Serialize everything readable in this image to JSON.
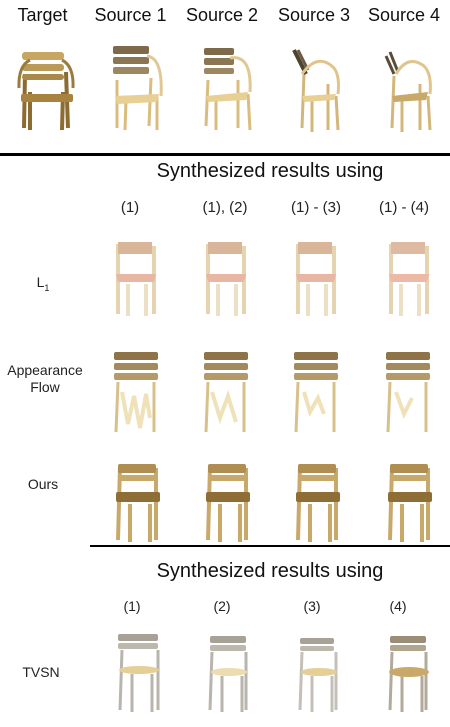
{
  "top": {
    "headers": [
      "Target",
      "Source 1",
      "Source 2",
      "Source 3",
      "Source 4"
    ]
  },
  "section1": {
    "title": "Synthesized results using",
    "columns": [
      "(1)",
      "(1), (2)",
      "(1) - (3)",
      "(1) - (4)"
    ],
    "rows": [
      {
        "label": "L",
        "label_sub": "1"
      },
      {
        "label_line1": "Appearance",
        "label_line2": "Flow"
      },
      {
        "label": "Ours"
      }
    ]
  },
  "section2": {
    "title": "Synthesized results using",
    "columns": [
      "(1)",
      "(2)",
      "(3)",
      "(4)"
    ],
    "rows": [
      {
        "label": "TVSN"
      }
    ]
  },
  "colors": {
    "wood_light": "#e8cf94",
    "wood_dark": "#a7833f",
    "seat_pink": "#e8b7a4",
    "metal": "#b9b5ad"
  }
}
